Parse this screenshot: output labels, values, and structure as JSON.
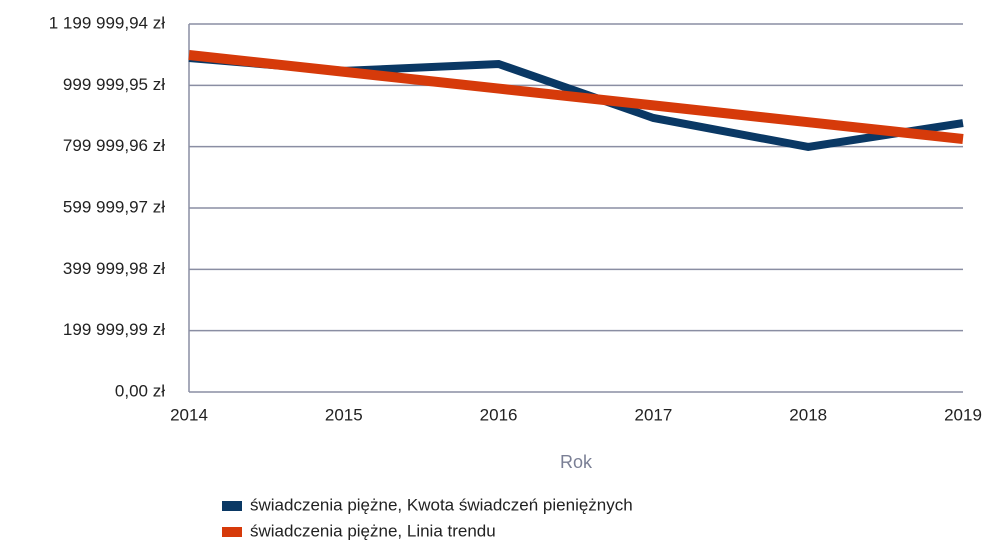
{
  "chart_data": {
    "type": "line",
    "x_label": "Rok",
    "x": [
      2014,
      2015,
      2016,
      2017,
      2018,
      2019
    ],
    "xlim": [
      2014,
      2019
    ],
    "xticks": [
      2014,
      2015,
      2016,
      2017,
      2018,
      2019
    ],
    "ylim": [
      0,
      1199999.94
    ],
    "yticks": [
      {
        "value": 0,
        "label": "0,00 zł"
      },
      {
        "value": 199999.99,
        "label": "199 999,99 zł"
      },
      {
        "value": 399999.98,
        "label": "399 999,98 zł"
      },
      {
        "value": 599999.97,
        "label": "599 999,97 zł"
      },
      {
        "value": 799999.96,
        "label": "799 999,96 zł"
      },
      {
        "value": 999999.95,
        "label": "999 999,95 zł"
      },
      {
        "value": 1199999.94,
        "label": "1 199 999,94 zł"
      }
    ],
    "grid": true,
    "legend": "bottom",
    "series": [
      {
        "name": "świadczenia piężne, Kwota świadczeń pieniężnych",
        "color": "#0a3864",
        "values": [
          1089000,
          1047000,
          1069600,
          893500,
          799000,
          877000
        ]
      },
      {
        "name": "świadczenia piężne, Linia trendu",
        "color": "#d63a0a",
        "values": [
          1099000,
          1044200,
          989400,
          934600,
          879800,
          825000
        ]
      }
    ]
  }
}
